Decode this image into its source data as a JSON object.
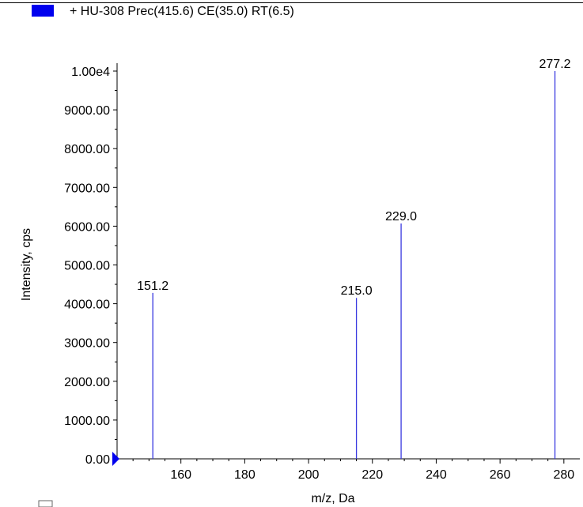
{
  "chart_data": {
    "type": "bar",
    "title": "+ HU-308 Prec(415.6) CE(35.0) RT(6.5)",
    "xlabel": "m/z, Da",
    "ylabel": "Intensity, cps",
    "xlim": [
      140,
      285
    ],
    "ylim": [
      0,
      10000
    ],
    "x_ticks": [
      160,
      180,
      200,
      220,
      240,
      260,
      280
    ],
    "x_tick_labels": [
      "160",
      "180",
      "200",
      "220",
      "240",
      "260",
      "280"
    ],
    "y_ticks": [
      0,
      1000,
      2000,
      3000,
      4000,
      5000,
      6000,
      7000,
      8000,
      9000,
      10000
    ],
    "y_tick_labels": [
      "0.00",
      "1000.00",
      "2000.00",
      "3000.00",
      "4000.00",
      "5000.00",
      "6000.00",
      "7000.00",
      "8000.00",
      "9000.00",
      "1.00e4"
    ],
    "series": [
      {
        "color": "#3a3ae0",
        "x": [
          151.2,
          215.0,
          229.0,
          277.2
        ],
        "values": [
          4280,
          4150,
          6070,
          10000
        ],
        "labels": [
          "151.2",
          "215.0",
          "229.0",
          "277.2"
        ]
      }
    ],
    "legend_color": "#0000ee",
    "axis_color": "#000000",
    "grid": false,
    "legend": "top-left"
  }
}
